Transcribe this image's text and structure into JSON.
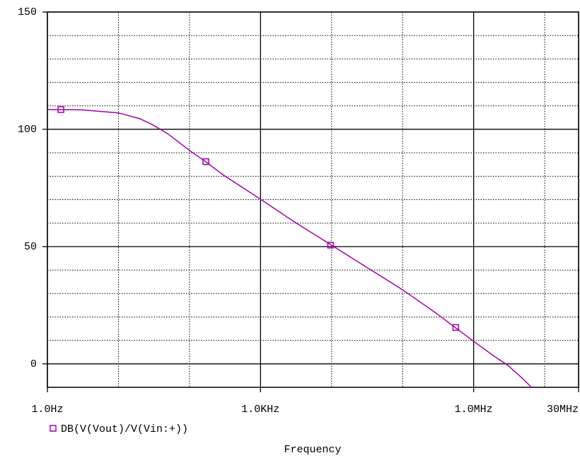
{
  "chart_data": {
    "type": "line",
    "x_label": "Frequency",
    "log_x": true,
    "xlim": [
      1,
      30000000
    ],
    "ylim": [
      -10,
      150
    ],
    "xticks": [
      {
        "value": 1,
        "label": "1.0Hz"
      },
      {
        "value": 1000,
        "label": "1.0KHz"
      },
      {
        "value": 1000000,
        "label": "1.0MHz"
      },
      {
        "value": 30000000,
        "label": "30MHz"
      }
    ],
    "xminorticks": [
      10,
      100,
      10000,
      100000,
      10000000
    ],
    "yticks": [
      0,
      50,
      100,
      150
    ],
    "yminorticks": [
      10,
      20,
      30,
      40,
      60,
      70,
      80,
      90,
      110,
      120,
      130,
      140
    ],
    "grid": true,
    "series": [
      {
        "name": "DB(V(Vout)/V(Vin:+))",
        "color": "#a000a8",
        "x": [
          1,
          3,
          10,
          20,
          30,
          50,
          100,
          165,
          300,
          1000,
          3000,
          10000,
          30000,
          100000,
          300000,
          1000000,
          2000000,
          3000000,
          5000000,
          6500000
        ],
        "values": [
          108.4,
          108.3,
          107,
          104.5,
          102,
          98,
          91,
          86.4,
          80.5,
          70.2,
          60.5,
          50.6,
          41.5,
          31.6,
          21.5,
          9.6,
          3,
          -0.5,
          -6.5,
          -10
        ],
        "marker_x": [
          1.55,
          170,
          9700,
          560000
        ],
        "marker_values": [
          108.4,
          86.2,
          50.6,
          15.5
        ]
      }
    ]
  }
}
